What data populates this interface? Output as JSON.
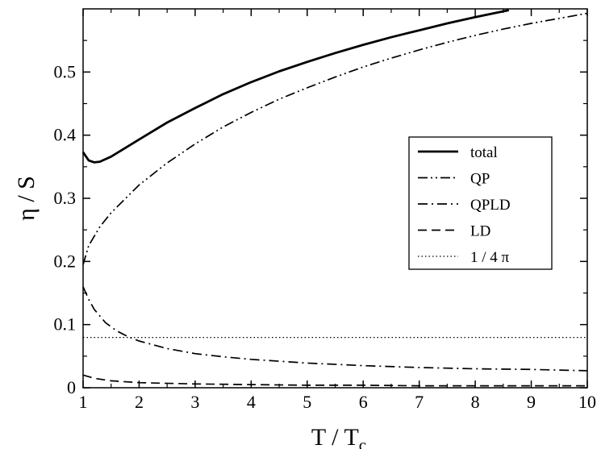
{
  "chart_data": {
    "type": "line",
    "xlabel": "T / T",
    "xlabel_sub": "c",
    "ylabel": "η / S",
    "xlim": [
      1,
      10
    ],
    "ylim": [
      0,
      0.6
    ],
    "xticks": [
      "1",
      "2",
      "3",
      "4",
      "5",
      "6",
      "7",
      "8",
      "9",
      "10"
    ],
    "yticks": [
      "0",
      "0.1",
      "0.2",
      "0.3",
      "0.4",
      "0.5"
    ],
    "grid": false,
    "legend_position": "right",
    "series": [
      {
        "name": "total",
        "style": "solid",
        "x": [
          1.0,
          1.1,
          1.2,
          1.3,
          1.5,
          2.0,
          2.5,
          3.0,
          3.5,
          4.0,
          4.5,
          5.0,
          5.5,
          6.0,
          6.5,
          7.0,
          7.5,
          8.0,
          8.6
        ],
        "y": [
          0.373,
          0.36,
          0.357,
          0.358,
          0.366,
          0.393,
          0.42,
          0.443,
          0.465,
          0.484,
          0.501,
          0.516,
          0.53,
          0.543,
          0.555,
          0.566,
          0.577,
          0.587,
          0.598
        ]
      },
      {
        "name": "QP",
        "style": "dash-dot-dot",
        "x": [
          1.0,
          1.1,
          1.3,
          1.5,
          2.0,
          2.5,
          3.0,
          3.5,
          4.0,
          4.5,
          5.0,
          5.5,
          6.0,
          6.5,
          7.0,
          7.5,
          8.0,
          8.5,
          9.0,
          9.5,
          10.0
        ],
        "y": [
          0.195,
          0.225,
          0.255,
          0.277,
          0.321,
          0.356,
          0.386,
          0.413,
          0.436,
          0.457,
          0.475,
          0.492,
          0.508,
          0.522,
          0.535,
          0.547,
          0.558,
          0.568,
          0.577,
          0.585,
          0.593
        ]
      },
      {
        "name": "QPLD",
        "style": "dash-dot",
        "x": [
          1.0,
          1.1,
          1.2,
          1.4,
          1.6,
          1.8,
          2.0,
          2.5,
          3.0,
          3.5,
          4.0,
          5.0,
          6.0,
          7.0,
          8.0,
          9.0,
          10.0
        ],
        "y": [
          0.16,
          0.14,
          0.124,
          0.103,
          0.09,
          0.081,
          0.074,
          0.062,
          0.054,
          0.049,
          0.045,
          0.039,
          0.035,
          0.032,
          0.03,
          0.029,
          0.027
        ]
      },
      {
        "name": "LD",
        "style": "dashed",
        "x": [
          1.0,
          1.2,
          1.5,
          2.0,
          3.0,
          4.0,
          5.0,
          6.0,
          7.0,
          8.0,
          9.0,
          10.0
        ],
        "y": [
          0.02,
          0.015,
          0.011,
          0.008,
          0.006,
          0.005,
          0.004,
          0.004,
          0.003,
          0.003,
          0.003,
          0.003
        ]
      },
      {
        "name": "1 / 4 π",
        "style": "dotted",
        "x": [
          1.0,
          10.0
        ],
        "y": [
          0.0796,
          0.0796
        ]
      }
    ]
  }
}
